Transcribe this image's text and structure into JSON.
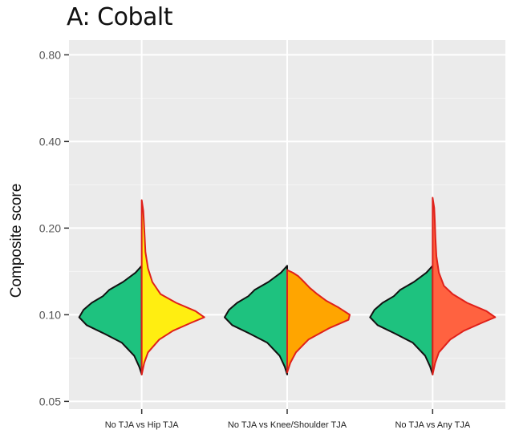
{
  "chart_data": {
    "type": "split-violin",
    "title": "A: Cobalt",
    "ylabel": "Composite score",
    "xlabel": "",
    "y_scale": "log",
    "ylim": [
      0.047,
      0.9
    ],
    "yticks": [
      0.05,
      0.1,
      0.2,
      0.4,
      0.8
    ],
    "ytick_labels": [
      "0.05",
      "0.10",
      "0.20",
      "0.40",
      "0.80"
    ],
    "grid": true,
    "legend": "none",
    "categories": [
      "No TJA vs Hip TJA",
      "No TJA vs Knee/Shoulder TJA",
      "No TJA vs Any TJA"
    ],
    "panels": [
      {
        "left": {
          "color": "#1ec27f",
          "profile": [
            [
              0.062,
              0.0
            ],
            [
              0.066,
              0.04
            ],
            [
              0.072,
              0.12
            ],
            [
              0.08,
              0.32
            ],
            [
              0.086,
              0.6
            ],
            [
              0.092,
              0.88
            ],
            [
              0.098,
              1.0
            ],
            [
              0.104,
              0.93
            ],
            [
              0.11,
              0.8
            ],
            [
              0.116,
              0.62
            ],
            [
              0.122,
              0.52
            ],
            [
              0.13,
              0.3
            ],
            [
              0.14,
              0.1
            ],
            [
              0.148,
              0.0
            ]
          ]
        },
        "right": {
          "color": "#ffee11",
          "profile": [
            [
              0.062,
              0.0
            ],
            [
              0.068,
              0.04
            ],
            [
              0.074,
              0.1
            ],
            [
              0.082,
              0.28
            ],
            [
              0.088,
              0.5
            ],
            [
              0.094,
              0.8
            ],
            [
              0.098,
              1.0
            ],
            [
              0.103,
              0.86
            ],
            [
              0.11,
              0.55
            ],
            [
              0.118,
              0.3
            ],
            [
              0.13,
              0.17
            ],
            [
              0.145,
              0.1
            ],
            [
              0.165,
              0.06
            ],
            [
              0.19,
              0.045
            ],
            [
              0.21,
              0.035
            ],
            [
              0.23,
              0.025
            ],
            [
              0.25,
              0.0
            ]
          ]
        }
      },
      {
        "left": {
          "color": "#1ec27f",
          "profile": [
            [
              0.062,
              0.0
            ],
            [
              0.066,
              0.04
            ],
            [
              0.072,
              0.12
            ],
            [
              0.08,
              0.32
            ],
            [
              0.086,
              0.6
            ],
            [
              0.092,
              0.88
            ],
            [
              0.098,
              1.0
            ],
            [
              0.104,
              0.93
            ],
            [
              0.11,
              0.8
            ],
            [
              0.116,
              0.62
            ],
            [
              0.122,
              0.52
            ],
            [
              0.13,
              0.3
            ],
            [
              0.14,
              0.1
            ],
            [
              0.148,
              0.0
            ]
          ]
        },
        "right": {
          "color": "#ffa500",
          "profile": [
            [
              0.063,
              0.0
            ],
            [
              0.068,
              0.05
            ],
            [
              0.074,
              0.14
            ],
            [
              0.082,
              0.34
            ],
            [
              0.09,
              0.68
            ],
            [
              0.096,
              0.98
            ],
            [
              0.1,
              1.0
            ],
            [
              0.106,
              0.82
            ],
            [
              0.112,
              0.62
            ],
            [
              0.118,
              0.48
            ],
            [
              0.124,
              0.36
            ],
            [
              0.13,
              0.27
            ],
            [
              0.136,
              0.18
            ],
            [
              0.14,
              0.09
            ],
            [
              0.143,
              0.0
            ]
          ]
        }
      },
      {
        "left": {
          "color": "#1ec27f",
          "profile": [
            [
              0.062,
              0.0
            ],
            [
              0.066,
              0.04
            ],
            [
              0.072,
              0.12
            ],
            [
              0.08,
              0.32
            ],
            [
              0.086,
              0.6
            ],
            [
              0.092,
              0.88
            ],
            [
              0.098,
              1.0
            ],
            [
              0.104,
              0.93
            ],
            [
              0.11,
              0.8
            ],
            [
              0.116,
              0.62
            ],
            [
              0.122,
              0.52
            ],
            [
              0.13,
              0.3
            ],
            [
              0.14,
              0.1
            ],
            [
              0.148,
              0.0
            ]
          ]
        },
        "right": {
          "color": "#ff6240",
          "profile": [
            [
              0.062,
              0.0
            ],
            [
              0.068,
              0.04
            ],
            [
              0.074,
              0.1
            ],
            [
              0.082,
              0.28
            ],
            [
              0.088,
              0.5
            ],
            [
              0.094,
              0.8
            ],
            [
              0.098,
              1.0
            ],
            [
              0.103,
              0.86
            ],
            [
              0.11,
              0.55
            ],
            [
              0.118,
              0.32
            ],
            [
              0.126,
              0.18
            ],
            [
              0.14,
              0.1
            ],
            [
              0.16,
              0.06
            ],
            [
              0.185,
              0.045
            ],
            [
              0.21,
              0.035
            ],
            [
              0.235,
              0.025
            ],
            [
              0.255,
              0.0
            ]
          ]
        }
      }
    ]
  }
}
